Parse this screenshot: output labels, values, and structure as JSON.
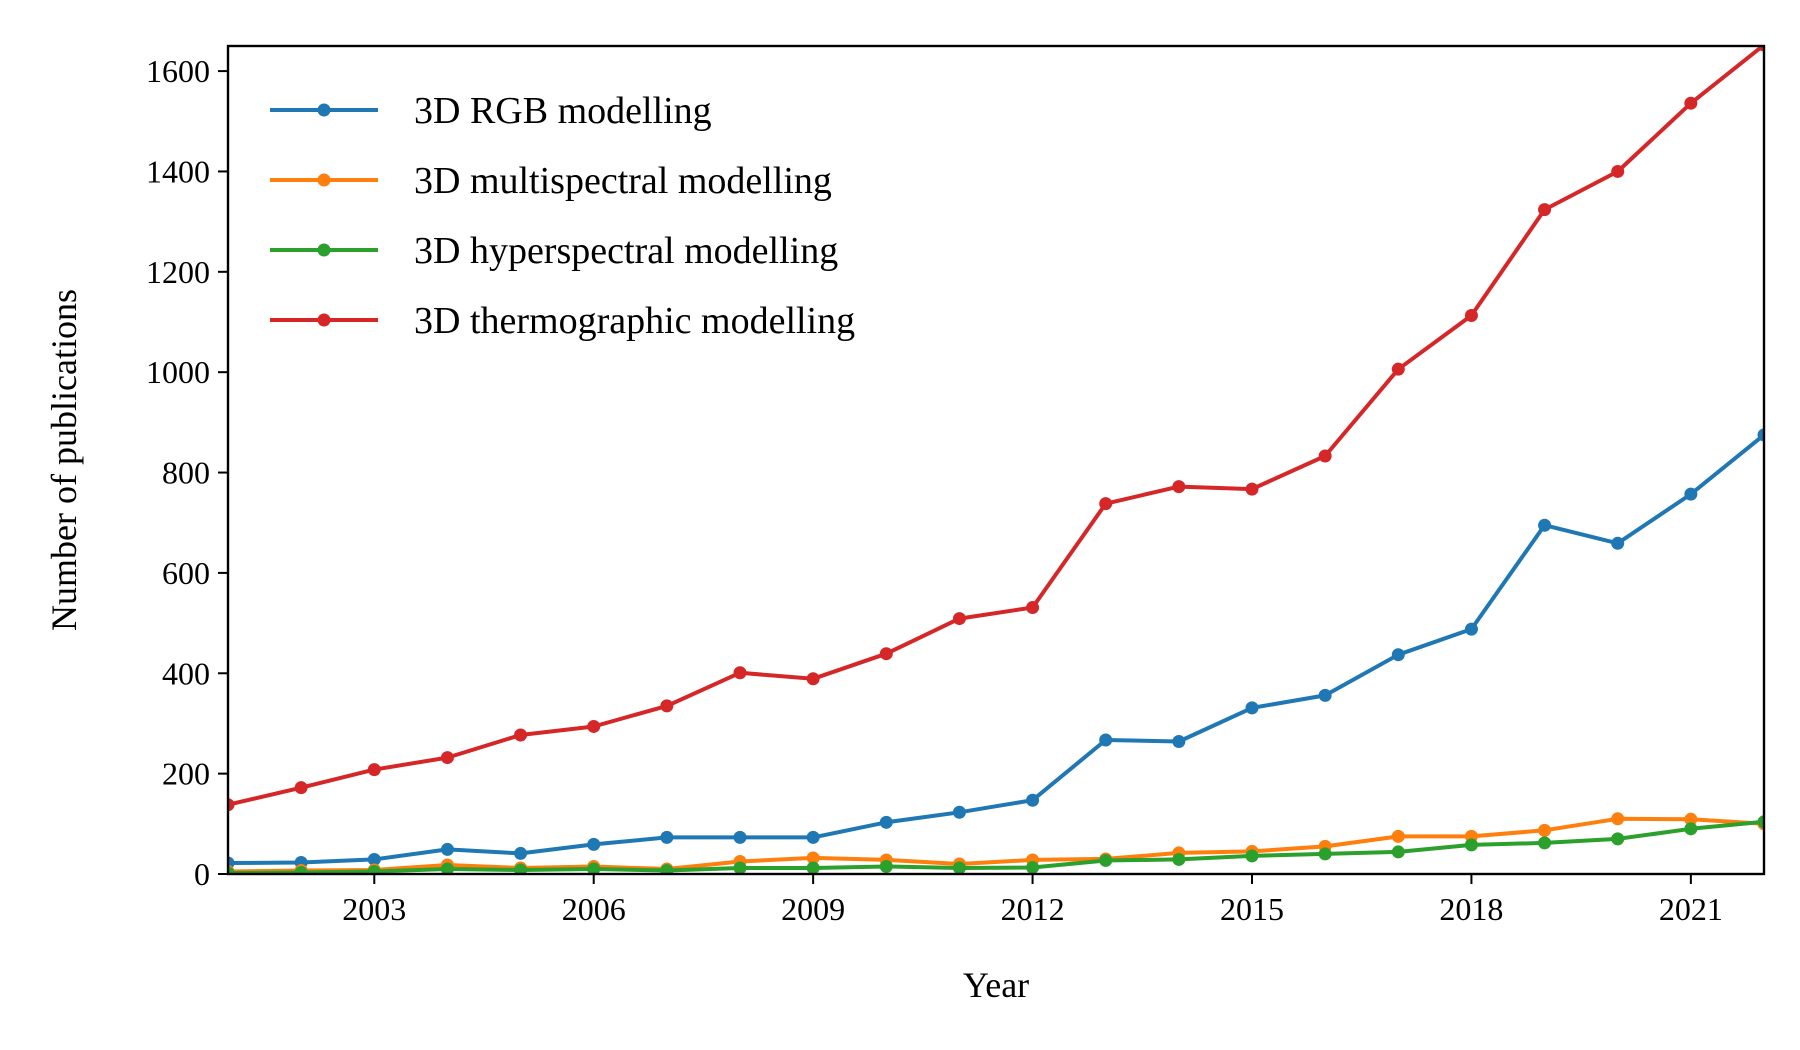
{
  "chart_data": {
    "type": "line",
    "title": "",
    "xlabel": "Year",
    "ylabel": "Number of publications",
    "xlim": [
      2001,
      2022
    ],
    "ylim": [
      0,
      1650
    ],
    "xticks": [
      2003,
      2006,
      2009,
      2012,
      2015,
      2018,
      2021
    ],
    "yticks": [
      0,
      200,
      400,
      600,
      800,
      1000,
      1200,
      1400,
      1600
    ],
    "grid": false,
    "legend_position": "top-left",
    "x": [
      2001,
      2002,
      2003,
      2004,
      2005,
      2006,
      2007,
      2008,
      2009,
      2010,
      2011,
      2012,
      2013,
      2014,
      2015,
      2016,
      2017,
      2018,
      2019,
      2020,
      2021,
      2022
    ],
    "series": [
      {
        "name": "3D RGB modelling",
        "color": "#1f77b4",
        "values": [
          22,
          23,
          29,
          49,
          41,
          59,
          73,
          73,
          73,
          103,
          123,
          147,
          267,
          264,
          331,
          356,
          437,
          488,
          695,
          659,
          757,
          875
        ]
      },
      {
        "name": "3D multispectral modelling",
        "color": "#ff7f0e",
        "values": [
          5,
          7,
          8,
          18,
          12,
          15,
          10,
          25,
          32,
          28,
          20,
          28,
          30,
          42,
          45,
          55,
          75,
          75,
          87,
          110,
          109,
          100
        ]
      },
      {
        "name": "3D hyperspectral modelling",
        "color": "#2ca02c",
        "values": [
          2,
          3,
          5,
          10,
          8,
          10,
          7,
          12,
          12,
          15,
          12,
          13,
          27,
          29,
          36,
          40,
          44,
          58,
          62,
          70,
          90,
          104
        ]
      },
      {
        "name": "3D thermographic modelling",
        "color": "#d62728",
        "values": [
          138,
          172,
          208,
          232,
          277,
          294,
          335,
          401,
          389,
          439,
          509,
          531,
          738,
          772,
          767,
          833,
          1006,
          1113,
          1324,
          1400,
          1536,
          1652
        ]
      }
    ]
  }
}
